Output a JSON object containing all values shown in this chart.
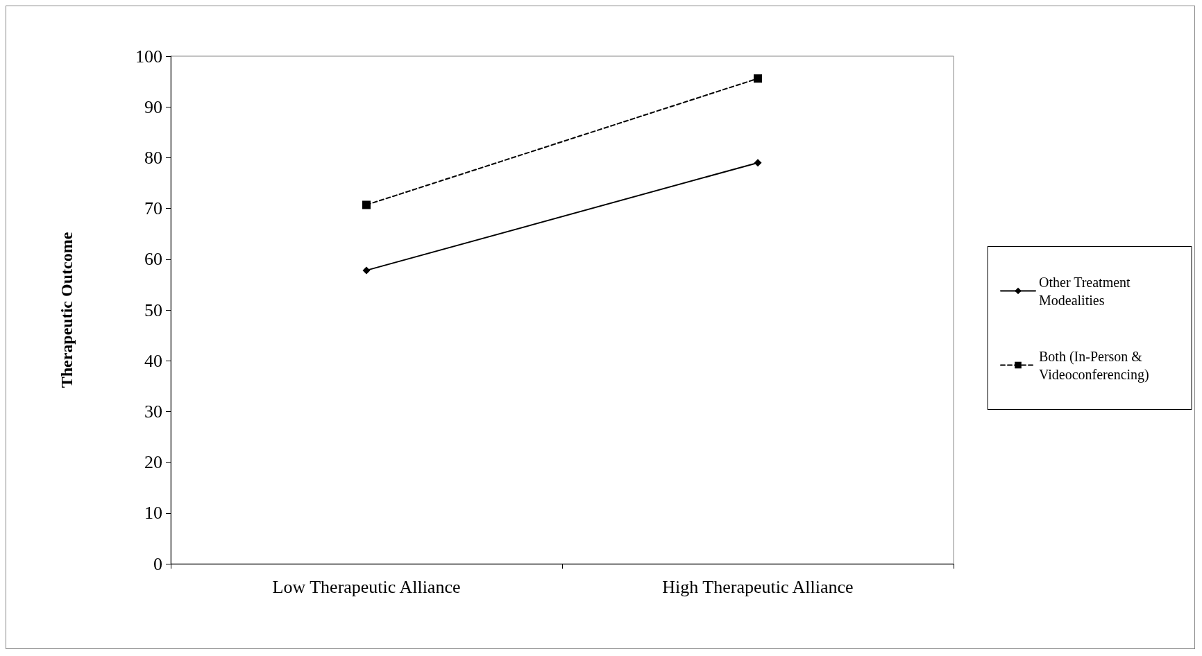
{
  "chart_data": {
    "type": "line",
    "ylabel": "Therapeutic Outcome",
    "categories": [
      "Low Therapeutic Alliance",
      "High Therapeutic Alliance"
    ],
    "series": [
      {
        "name": "Other Treatment Modealities",
        "color": "#000000",
        "values": [
          57.8,
          79.0
        ],
        "marker": "diamond",
        "line_style": "solid"
      },
      {
        "name": "Both (In-Person & Videoconferencing)",
        "color": "#000000",
        "values": [
          70.7,
          95.6
        ],
        "marker": "square",
        "line_style": "dashed"
      }
    ],
    "ylim": [
      0,
      100
    ],
    "yticks": [
      0,
      10,
      20,
      30,
      40,
      50,
      60,
      70,
      80,
      90,
      100
    ],
    "grid": false,
    "legend": "right"
  }
}
